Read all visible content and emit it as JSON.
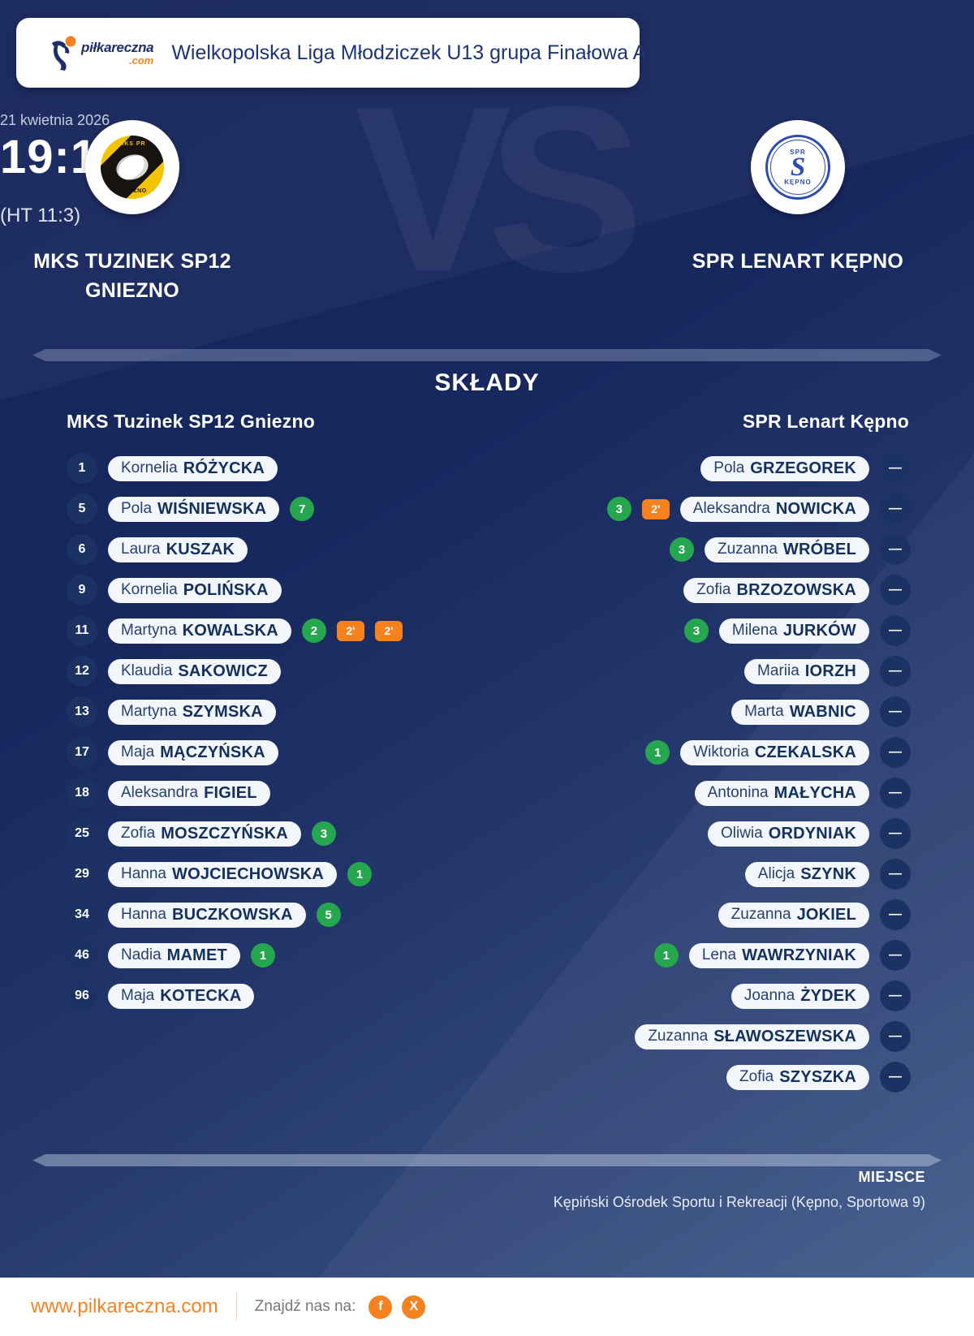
{
  "header": {
    "logo": {
      "word": "piłkareczna",
      "tld": ".com"
    },
    "title": "Wielkopolska Liga Młodziczek U13 grupa Finałowa A"
  },
  "match": {
    "date": "21 kwietnia 2026",
    "score": "19:11",
    "halftime": "(HT 11:3)",
    "vs": "VS",
    "home": {
      "name_lines": [
        "MKS TUZINEK SP12",
        "GNIEZNO"
      ],
      "crest": {
        "top": "MKS PR",
        "bottom": "GNIEZNO"
      }
    },
    "away": {
      "name_lines": [
        "SPR LENART KĘPNO"
      ],
      "crest": {
        "top": "SPR",
        "letter": "S",
        "bottom": "KĘPNO"
      }
    }
  },
  "lineups": {
    "heading": "SKŁADY",
    "home_header": "MKS Tuzinek SP12 Gniezno",
    "away_header": "SPR Lenart Kępno",
    "two_min_label": "2'",
    "home_players": [
      {
        "number": "1",
        "first": "Kornelia",
        "last": "RÓŻYCKA",
        "goals": "",
        "two_min": 0
      },
      {
        "number": "5",
        "first": "Pola",
        "last": "WIŚNIEWSKA",
        "goals": "7",
        "two_min": 0
      },
      {
        "number": "6",
        "first": "Laura",
        "last": "KUSZAK",
        "goals": "",
        "two_min": 0
      },
      {
        "number": "9",
        "first": "Kornelia",
        "last": "POLIŃSKA",
        "goals": "",
        "two_min": 0
      },
      {
        "number": "11",
        "first": "Martyna",
        "last": "KOWALSKA",
        "goals": "2",
        "two_min": 2
      },
      {
        "number": "12",
        "first": "Klaudia",
        "last": "SAKOWICZ",
        "goals": "",
        "two_min": 0
      },
      {
        "number": "13",
        "first": "Martyna",
        "last": "SZYMSKA",
        "goals": "",
        "two_min": 0
      },
      {
        "number": "17",
        "first": "Maja",
        "last": "MĄCZYŃSKA",
        "goals": "",
        "two_min": 0
      },
      {
        "number": "18",
        "first": "Aleksandra",
        "last": "FIGIEL",
        "goals": "",
        "two_min": 0
      },
      {
        "number": "25",
        "first": "Zofia",
        "last": "MOSZCZYŃSKA",
        "goals": "3",
        "two_min": 0
      },
      {
        "number": "29",
        "first": "Hanna",
        "last": "WOJCIECHOWSKA",
        "goals": "1",
        "two_min": 0
      },
      {
        "number": "34",
        "first": "Hanna",
        "last": "BUCZKOWSKA",
        "goals": "5",
        "two_min": 0
      },
      {
        "number": "46",
        "first": "Nadia",
        "last": "MAMET",
        "goals": "1",
        "two_min": 0
      },
      {
        "number": "96",
        "first": "Maja",
        "last": "KOTECKA",
        "goals": "",
        "two_min": 0
      }
    ],
    "away_players": [
      {
        "number": "—",
        "first": "Pola",
        "last": "GRZEGOREK",
        "goals": "",
        "two_min": 0
      },
      {
        "number": "—",
        "first": "Aleksandra",
        "last": "NOWICKA",
        "goals": "3",
        "two_min": 1
      },
      {
        "number": "—",
        "first": "Zuzanna",
        "last": "WRÓBEL",
        "goals": "3",
        "two_min": 0
      },
      {
        "number": "—",
        "first": "Zofia",
        "last": "BRZOZOWSKA",
        "goals": "",
        "two_min": 0
      },
      {
        "number": "—",
        "first": "Milena",
        "last": "JURKÓW",
        "goals": "3",
        "two_min": 0
      },
      {
        "number": "—",
        "first": "Mariia",
        "last": "IORZH",
        "goals": "",
        "two_min": 0
      },
      {
        "number": "—",
        "first": "Marta",
        "last": "WABNIC",
        "goals": "",
        "two_min": 0
      },
      {
        "number": "—",
        "first": "Wiktoria",
        "last": "CZEKALSKA",
        "goals": "1",
        "two_min": 0
      },
      {
        "number": "—",
        "first": "Antonina",
        "last": "MAŁYCHA",
        "goals": "",
        "two_min": 0
      },
      {
        "number": "—",
        "first": "Oliwia",
        "last": "ORDYNIAK",
        "goals": "",
        "two_min": 0
      },
      {
        "number": "—",
        "first": "Alicja",
        "last": "SZYNK",
        "goals": "",
        "two_min": 0
      },
      {
        "number": "—",
        "first": "Zuzanna",
        "last": "JOKIEL",
        "goals": "",
        "two_min": 0
      },
      {
        "number": "—",
        "first": "Lena",
        "last": "WAWRZYNIAK",
        "goals": "1",
        "two_min": 0
      },
      {
        "number": "—",
        "first": "Joanna",
        "last": "ŻYDEK",
        "goals": "",
        "two_min": 0
      },
      {
        "number": "—",
        "first": "Zuzanna",
        "last": "SŁAWOSZEWSKA",
        "goals": "",
        "two_min": 0
      },
      {
        "number": "—",
        "first": "Zofia",
        "last": "SZYSZKA",
        "goals": "",
        "two_min": 0
      }
    ]
  },
  "venue": {
    "label": "MIEJSCE",
    "value": "Kępiński Ośrodek Sportu i Rekreacji (Kępno, Sportowa 9)"
  },
  "footer": {
    "website": "www.pilkareczna.com",
    "find_us": "Znajdź nas na:",
    "social": [
      {
        "label": "f",
        "name": "facebook-icon"
      },
      {
        "label": "X",
        "name": "x-icon"
      }
    ]
  },
  "colors": {
    "navy_bg": "#15255b",
    "pill_bg": "#f3f6fb",
    "goal_green": "#27a650",
    "penalty_orange": "#f5821f",
    "accent_orange": "#f5821f",
    "circle_navy": "#1c3263"
  }
}
